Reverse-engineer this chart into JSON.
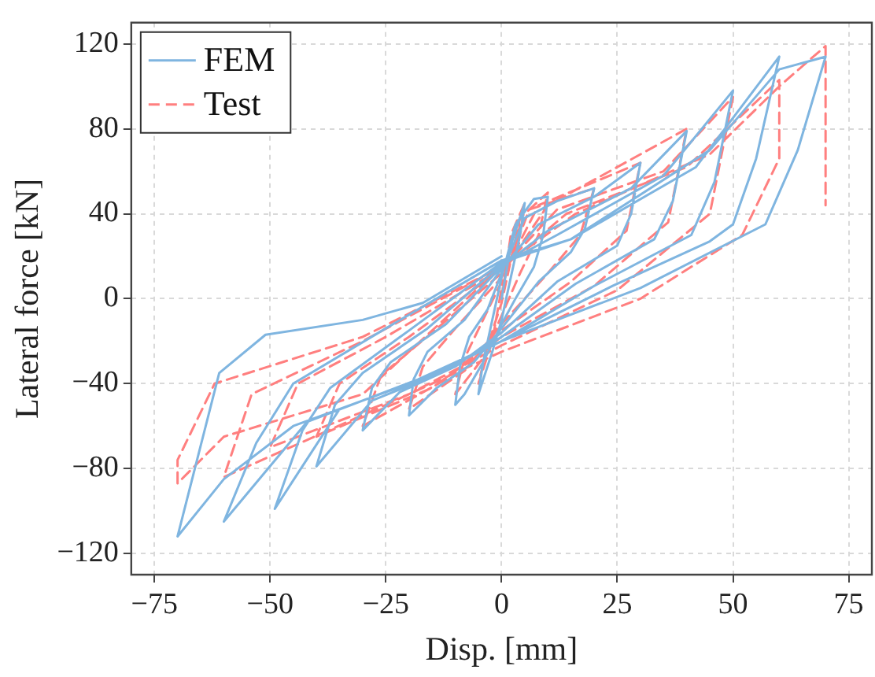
{
  "chart_data": {
    "type": "line",
    "xlabel": "Disp. [mm]",
    "ylabel": "Lateral force [kN]",
    "xlim": [
      -80,
      80
    ],
    "xticks": [
      -75,
      -50,
      -25,
      0,
      25,
      50,
      75
    ],
    "ylim": [
      -130,
      130
    ],
    "yticks": [
      -120,
      -80,
      -40,
      0,
      40,
      80,
      120
    ],
    "grid": true,
    "legend": "top left",
    "marker": "none",
    "series": [
      {
        "name": "FEM",
        "color": "#7fb5e0",
        "line_style": "solid",
        "x": [
          0,
          2,
          5,
          4,
          2,
          0,
          -2,
          -5,
          -4,
          -2,
          0,
          3,
          7,
          10,
          9,
          7,
          3,
          0,
          -4,
          -8,
          -10,
          -9,
          -7,
          -3,
          0,
          5,
          12,
          20,
          18,
          15,
          8,
          0,
          -6,
          -14,
          -20,
          -19,
          -16,
          -8,
          0,
          8,
          20,
          30,
          28,
          25,
          12,
          0,
          -10,
          -22,
          -30,
          -28,
          -24,
          -12,
          0,
          10,
          28,
          40,
          37,
          33,
          16,
          0,
          -12,
          -28,
          -40,
          -36,
          -30,
          -16,
          0,
          12,
          35,
          50,
          46,
          41,
          20,
          0,
          -15,
          -35,
          -49,
          -43,
          -37,
          -20,
          0,
          15,
          42,
          60,
          55,
          50,
          45,
          24,
          0,
          -18,
          -42,
          -60,
          -53,
          -45,
          -25,
          0,
          15,
          45,
          60,
          70,
          64,
          57,
          30,
          0,
          -20,
          -45,
          -60,
          -70,
          -61,
          -51,
          -30,
          -17,
          0
        ],
        "values": [
          0,
          25,
          45,
          30,
          10,
          -10,
          -25,
          -45,
          -30,
          -10,
          10,
          35,
          47,
          48,
          30,
          15,
          0,
          -12,
          -30,
          -45,
          -50,
          -32,
          -18,
          -5,
          12,
          38,
          46,
          52,
          33,
          22,
          8,
          -14,
          -30,
          -42,
          -55,
          -38,
          -25,
          -10,
          14,
          35,
          48,
          64,
          40,
          25,
          8,
          -16,
          -32,
          -44,
          -62,
          -42,
          -30,
          -12,
          15,
          32,
          52,
          79,
          46,
          28,
          7,
          -18,
          -34,
          -48,
          -79,
          -50,
          -35,
          -14,
          16,
          30,
          58,
          98,
          55,
          30,
          6,
          -20,
          -36,
          -52,
          -99,
          -62,
          -42,
          -15,
          17,
          28,
          62,
          114,
          66,
          35,
          27,
          6,
          -20,
          -38,
          -58,
          -105,
          -68,
          -40,
          -14,
          18,
          28,
          70,
          108,
          114,
          70,
          35,
          5,
          -20,
          -40,
          -60,
          -85,
          -112,
          -35,
          -17,
          -10,
          -2,
          20
        ]
      },
      {
        "name": "Test",
        "color": "#ff7f7f",
        "line_style": "dashed",
        "x": [
          0,
          2,
          5,
          3,
          0,
          -2,
          -5,
          -3,
          0,
          4,
          10,
          8,
          4,
          0,
          -4,
          -10,
          -8,
          -4,
          0,
          6,
          20,
          17,
          10,
          0,
          -8,
          -20,
          -17,
          -10,
          0,
          8,
          30,
          27,
          15,
          0,
          -12,
          -30,
          -26,
          -15,
          0,
          10,
          40,
          36,
          20,
          0,
          -15,
          -40,
          -35,
          -20,
          0,
          12,
          35,
          50,
          45,
          25,
          0,
          -20,
          -50,
          -44,
          -25,
          0,
          14,
          40,
          60,
          60,
          52,
          30,
          0,
          -25,
          -60,
          -54,
          -30,
          0,
          -30,
          -60,
          -70,
          -70,
          -62,
          -30,
          0,
          16,
          45,
          60,
          70,
          70
        ],
        "values": [
          0,
          30,
          45,
          25,
          5,
          -20,
          -40,
          -22,
          -2,
          38,
          50,
          30,
          12,
          -8,
          -28,
          -45,
          -28,
          -10,
          8,
          42,
          52,
          30,
          12,
          -12,
          -34,
          -52,
          -32,
          -14,
          10,
          44,
          64,
          32,
          8,
          -15,
          -38,
          -60,
          -36,
          -16,
          12,
          44,
          80,
          36,
          6,
          -18,
          -42,
          -65,
          -40,
          -18,
          14,
          42,
          60,
          95,
          40,
          4,
          -22,
          -45,
          -70,
          -40,
          -18,
          14,
          40,
          62,
          103,
          66,
          30,
          0,
          -25,
          -50,
          -84,
          -45,
          -20,
          15,
          -45,
          -65,
          -87,
          -76,
          -40,
          -18,
          15,
          40,
          68,
          100,
          119,
          44
        ]
      }
    ]
  }
}
